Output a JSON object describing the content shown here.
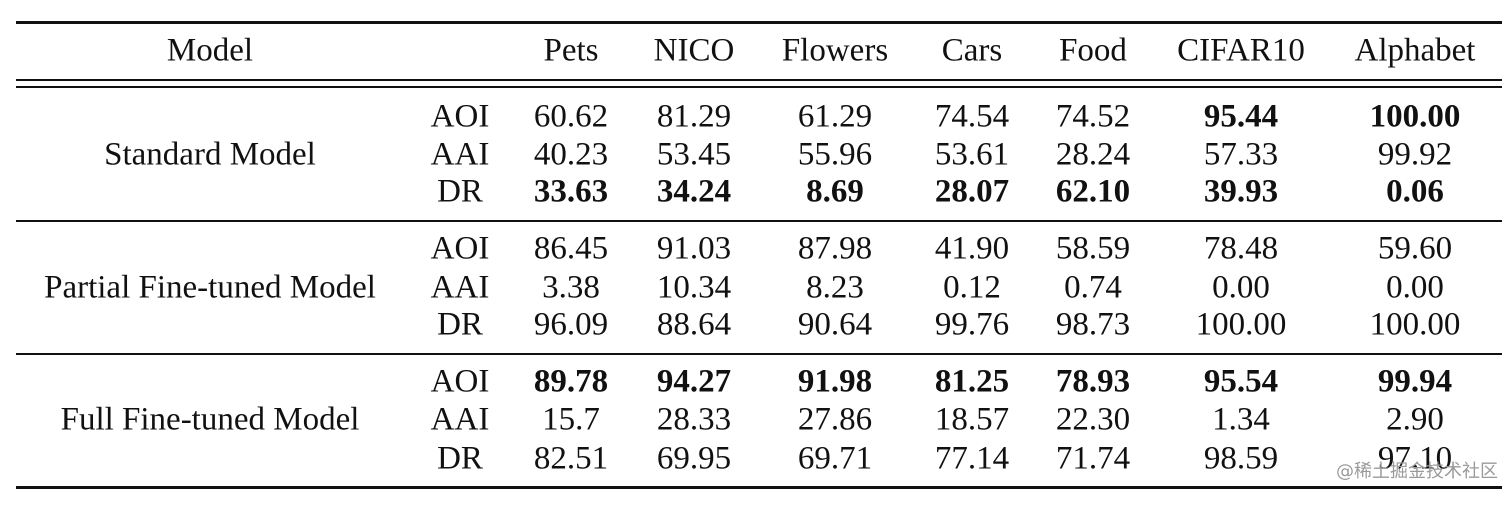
{
  "table": {
    "header": [
      "Model",
      "",
      "Pets",
      "NICO",
      "Flowers",
      "Cars",
      "Food",
      "CIFAR10",
      "Alphabet"
    ],
    "groups": [
      {
        "name": "Standard Model",
        "rows": [
          {
            "metric": "AOI",
            "values": [
              "60.62",
              "81.29",
              "61.29",
              "74.54",
              "74.52",
              "95.44",
              "100.00"
            ],
            "bold": [
              false,
              false,
              false,
              false,
              false,
              true,
              true
            ]
          },
          {
            "metric": "AAI",
            "values": [
              "40.23",
              "53.45",
              "55.96",
              "53.61",
              "28.24",
              "57.33",
              "99.92"
            ],
            "bold": [
              false,
              false,
              false,
              false,
              false,
              false,
              false
            ]
          },
          {
            "metric": "DR",
            "values": [
              "33.63",
              "34.24",
              "8.69",
              "28.07",
              "62.10",
              "39.93",
              "0.06"
            ],
            "bold": [
              true,
              true,
              true,
              true,
              true,
              true,
              true
            ]
          }
        ]
      },
      {
        "name": "Partial Fine-tuned Model",
        "rows": [
          {
            "metric": "AOI",
            "values": [
              "86.45",
              "91.03",
              "87.98",
              "41.90",
              "58.59",
              "78.48",
              "59.60"
            ],
            "bold": [
              false,
              false,
              false,
              false,
              false,
              false,
              false
            ]
          },
          {
            "metric": "AAI",
            "values": [
              "3.38",
              "10.34",
              "8.23",
              "0.12",
              "0.74",
              "0.00",
              "0.00"
            ],
            "bold": [
              false,
              false,
              false,
              false,
              false,
              false,
              false
            ]
          },
          {
            "metric": "DR",
            "values": [
              "96.09",
              "88.64",
              "90.64",
              "99.76",
              "98.73",
              "100.00",
              "100.00"
            ],
            "bold": [
              false,
              false,
              false,
              false,
              false,
              false,
              false
            ]
          }
        ]
      },
      {
        "name": "Full Fine-tuned Model",
        "rows": [
          {
            "metric": "AOI",
            "values": [
              "89.78",
              "94.27",
              "91.98",
              "81.25",
              "78.93",
              "95.54",
              "99.94"
            ],
            "bold": [
              true,
              true,
              true,
              true,
              true,
              true,
              true
            ]
          },
          {
            "metric": "AAI",
            "values": [
              "15.7",
              "28.33",
              "27.86",
              "18.57",
              "22.30",
              "1.34",
              "2.90"
            ],
            "bold": [
              false,
              false,
              false,
              false,
              false,
              false,
              false
            ]
          },
          {
            "metric": "DR",
            "values": [
              "82.51",
              "69.95",
              "69.71",
              "77.14",
              "71.74",
              "98.59",
              "97.10"
            ],
            "bold": [
              false,
              false,
              false,
              false,
              false,
              false,
              false
            ]
          }
        ]
      }
    ]
  },
  "watermark": "@稀土掘金技术社区",
  "colors": {
    "text": "#111111",
    "watermark": "#9a9a9a"
  }
}
